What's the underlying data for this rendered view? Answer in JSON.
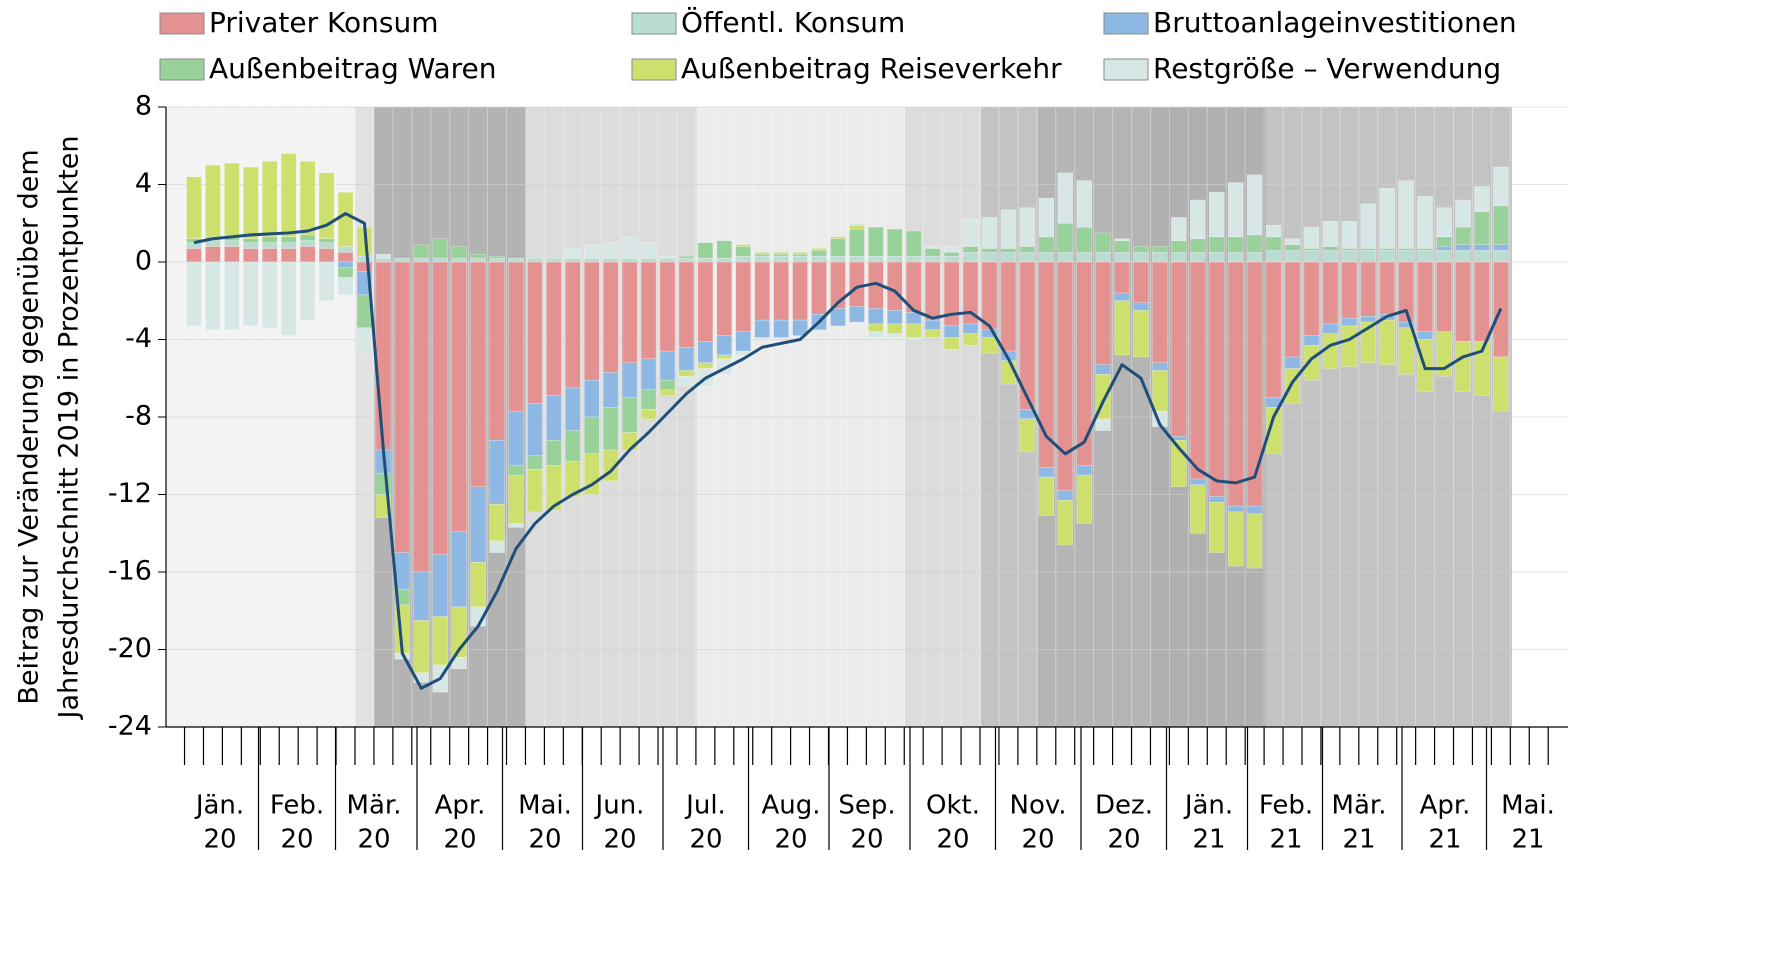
{
  "chart_data": {
    "type": "stacked_bar_line",
    "ylabel": [
      "Beitrag zur Veränderung gegenüber dem",
      "Jahresdurchschnitt 2019 in Prozentpunkten"
    ],
    "ylim": [
      -24,
      8
    ],
    "yticks": [
      -24,
      -20,
      -16,
      -12,
      -8,
      -4,
      0,
      4,
      8
    ],
    "grid": true,
    "x_labels": [
      [
        "Jän.",
        "20"
      ],
      [
        "Feb.",
        "20"
      ],
      [
        "Mär.",
        "20"
      ],
      [
        "Apr.",
        "20"
      ],
      [
        "Mai.",
        "20"
      ],
      [
        "Jun.",
        "20"
      ],
      [
        "Jul.",
        "20"
      ],
      [
        "Aug.",
        "20"
      ],
      [
        "Sep.",
        "20"
      ],
      [
        "Okt.",
        "20"
      ],
      [
        "Nov.",
        "20"
      ],
      [
        "Dez.",
        "20"
      ],
      [
        "Jän.",
        "21"
      ],
      [
        "Feb.",
        "21"
      ],
      [
        "Mär.",
        "21"
      ],
      [
        "Apr.",
        "21"
      ],
      [
        "Mai.",
        "21"
      ]
    ],
    "series": [
      {
        "name": "Privater Konsum",
        "color": "#e39191",
        "values": [
          0.7,
          0.8,
          0.8,
          0.7,
          0.7,
          0.7,
          0.8,
          0.7,
          0.5,
          -0.5,
          -9.7,
          -15,
          -16,
          -15.1,
          -13.9,
          -11.6,
          -9.2,
          -7.7,
          -7.3,
          -6.9,
          -6.5,
          -6.1,
          -5.7,
          -5.2,
          -5,
          -4.6,
          -4.4,
          -4.1,
          -3.8,
          -3.6,
          -3,
          -3,
          -3,
          -2.7,
          -2.4,
          -2.3,
          -2.4,
          -2.5,
          -2.6,
          -3,
          -3.3,
          -3.2,
          -3.5,
          -4.6,
          -7.6,
          -10.6,
          -11.8,
          -10.5,
          -5.3,
          -1.6,
          -2.1,
          -5.2,
          -9,
          -11.2,
          -12.1,
          -12.6,
          -12.6,
          -7,
          -4.9,
          -3.8,
          -3.2,
          -2.9,
          -2.8,
          -2.7,
          -3.1,
          -3.6,
          -3.6,
          -4.1,
          -4.1,
          -4.9
        ]
      },
      {
        "name": "Öffentl. Konsum",
        "color": "#b9dcd3",
        "values": [
          0.3,
          0.3,
          0.3,
          0.3,
          0.3,
          0.3,
          0.3,
          0.3,
          0.3,
          0.3,
          0.2,
          0.2,
          0.2,
          0.2,
          0.2,
          0.2,
          0.2,
          0.2,
          0.2,
          0.2,
          0.2,
          0.2,
          0.2,
          0.2,
          0.2,
          0.2,
          0.2,
          0.2,
          0.2,
          0.3,
          0.3,
          0.3,
          0.3,
          0.3,
          0.3,
          0.3,
          0.3,
          0.3,
          0.3,
          0.3,
          0.3,
          0.5,
          0.5,
          0.5,
          0.5,
          0.5,
          0.5,
          0.5,
          0.5,
          0.5,
          0.5,
          0.5,
          0.5,
          0.5,
          0.5,
          0.5,
          0.5,
          0.6,
          0.6,
          0.6,
          0.6,
          0.6,
          0.6,
          0.6,
          0.6,
          0.6,
          0.6,
          0.6,
          0.6,
          0.6
        ]
      },
      {
        "name": "Bruttoanlageinvestitionen",
        "color": "#8db8e4",
        "values": [
          0,
          0,
          0,
          0,
          0,
          0,
          0,
          0,
          -0.3,
          -1.2,
          -1.2,
          -1.9,
          -2.5,
          -3.2,
          -3.9,
          -3.9,
          -3.3,
          -2.8,
          -2.7,
          -2.3,
          -2.2,
          -1.9,
          -1.8,
          -1.8,
          -1.6,
          -1.5,
          -1.2,
          -1.1,
          -1,
          -1,
          -0.9,
          -0.9,
          -0.8,
          -0.8,
          -0.9,
          -0.8,
          -0.8,
          -0.7,
          -0.6,
          -0.5,
          -0.6,
          -0.5,
          -0.4,
          -0.5,
          -0.5,
          -0.5,
          -0.5,
          -0.5,
          -0.5,
          -0.4,
          -0.4,
          -0.4,
          -0.2,
          -0.3,
          -0.3,
          -0.3,
          -0.4,
          -0.5,
          -0.6,
          -0.5,
          -0.5,
          -0.4,
          -0.3,
          -0.3,
          -0.3,
          -0.4,
          0.2,
          0.3,
          0.3,
          0.3
        ]
      },
      {
        "name": "Außenbeitrag Waren",
        "color": "#99d19a",
        "values": [
          0.2,
          0.2,
          0.2,
          0.2,
          0.3,
          0.3,
          0.3,
          0.2,
          -0.5,
          -1.7,
          -1.1,
          -0.8,
          0.7,
          1,
          0.6,
          0.2,
          0.1,
          -0.5,
          -0.7,
          -1.3,
          -1.6,
          -1.9,
          -2.2,
          -1.8,
          -1,
          -0.5,
          0.1,
          0.8,
          0.9,
          0.5,
          0.1,
          0.1,
          0.1,
          0.3,
          0.9,
          1.4,
          1.5,
          1.4,
          1.3,
          0.4,
          0.2,
          0.3,
          0.2,
          0.2,
          0.3,
          0.8,
          1.5,
          1.3,
          1,
          0.6,
          0.3,
          0.3,
          0.6,
          0.7,
          0.8,
          0.8,
          0.9,
          0.7,
          0.3,
          0.1,
          0.2,
          0.1,
          0.1,
          0.1,
          0.1,
          0.1,
          0.5,
          0.9,
          1.7,
          2
        ]
      },
      {
        "name": "Außenbeitrag Reiseverkehr",
        "color": "#cde06e",
        "values": [
          3.2,
          3.7,
          3.8,
          3.7,
          3.9,
          4.3,
          3.8,
          3.4,
          2.8,
          1.5,
          -1.2,
          -2.5,
          -2.7,
          -2.5,
          -2.6,
          -2.3,
          -1.9,
          -2.5,
          -2.2,
          -2.3,
          -1.8,
          -2.1,
          -1.6,
          -0.9,
          -0.5,
          -0.3,
          -0.3,
          -0.3,
          -0.2,
          0.1,
          0.1,
          0.1,
          0.1,
          0.1,
          0.1,
          0.2,
          -0.4,
          -0.5,
          -0.7,
          -0.4,
          -0.6,
          -0.6,
          -0.8,
          -1.2,
          -1.7,
          -2,
          -2.3,
          -2.5,
          -2.3,
          -2.8,
          -2.4,
          -2.1,
          -2.4,
          -2.5,
          -2.6,
          -2.8,
          -2.8,
          -2.4,
          -1.8,
          -1.8,
          -1.8,
          -2.1,
          -2.1,
          -2.3,
          -2.4,
          -2.7,
          -2.3,
          -2.6,
          -2.8,
          -2.8
        ]
      },
      {
        "name": "Restgröße – Verwendung",
        "color": "#d6e7e6",
        "values": [
          -3.3,
          -3.5,
          -3.5,
          -3.3,
          -3.4,
          -3.8,
          -3,
          -2,
          -0.9,
          -1.3,
          0.2,
          -0.3,
          -0.5,
          -1.4,
          -0.6,
          -1,
          -0.6,
          -0.2,
          0,
          0,
          0.5,
          0.7,
          0.8,
          1.1,
          0.8,
          0.1,
          -0.5,
          -0.9,
          -0.8,
          -0.2,
          0,
          0,
          0,
          0,
          0,
          0.1,
          -0.3,
          -0.2,
          -0.1,
          0.1,
          0.3,
          1.4,
          1.6,
          2,
          2,
          2,
          2.6,
          2.4,
          -0.6,
          0.1,
          0,
          -0.8,
          1.2,
          2,
          2.3,
          2.8,
          3.1,
          0.6,
          0.3,
          1.1,
          1.3,
          1.4,
          2.3,
          3.1,
          3.5,
          2.7,
          1.5,
          1.4,
          1.3,
          2
        ]
      }
    ],
    "line": {
      "color": "#1f4e79",
      "values": [
        1,
        1.2,
        1.3,
        1.4,
        1.45,
        1.5,
        1.6,
        1.9,
        2.5,
        2,
        -9.7,
        -20.2,
        -22,
        -21.5,
        -20,
        -18.8,
        -17,
        -14.8,
        -13.5,
        -12.6,
        -12,
        -11.5,
        -10.8,
        -9.7,
        -8.8,
        -7.8,
        -6.8,
        -6,
        -5.5,
        -5,
        -4.4,
        -4.2,
        -4,
        -3.1,
        -2.1,
        -1.3,
        -1.1,
        -1.5,
        -2.5,
        -2.9,
        -2.7,
        -2.6,
        -3.3,
        -5,
        -7,
        -9,
        -9.9,
        -9.3,
        -7.2,
        -5.3,
        -6,
        -8.4,
        -9.6,
        -10.7,
        -11.3,
        -11.4,
        -11.1,
        -8,
        -6.2,
        -5,
        -4.3,
        -4,
        -3.4,
        -2.8,
        -2.5,
        -5.5,
        -5.5,
        -4.9,
        -4.6,
        -2.4
      ]
    }
  }
}
